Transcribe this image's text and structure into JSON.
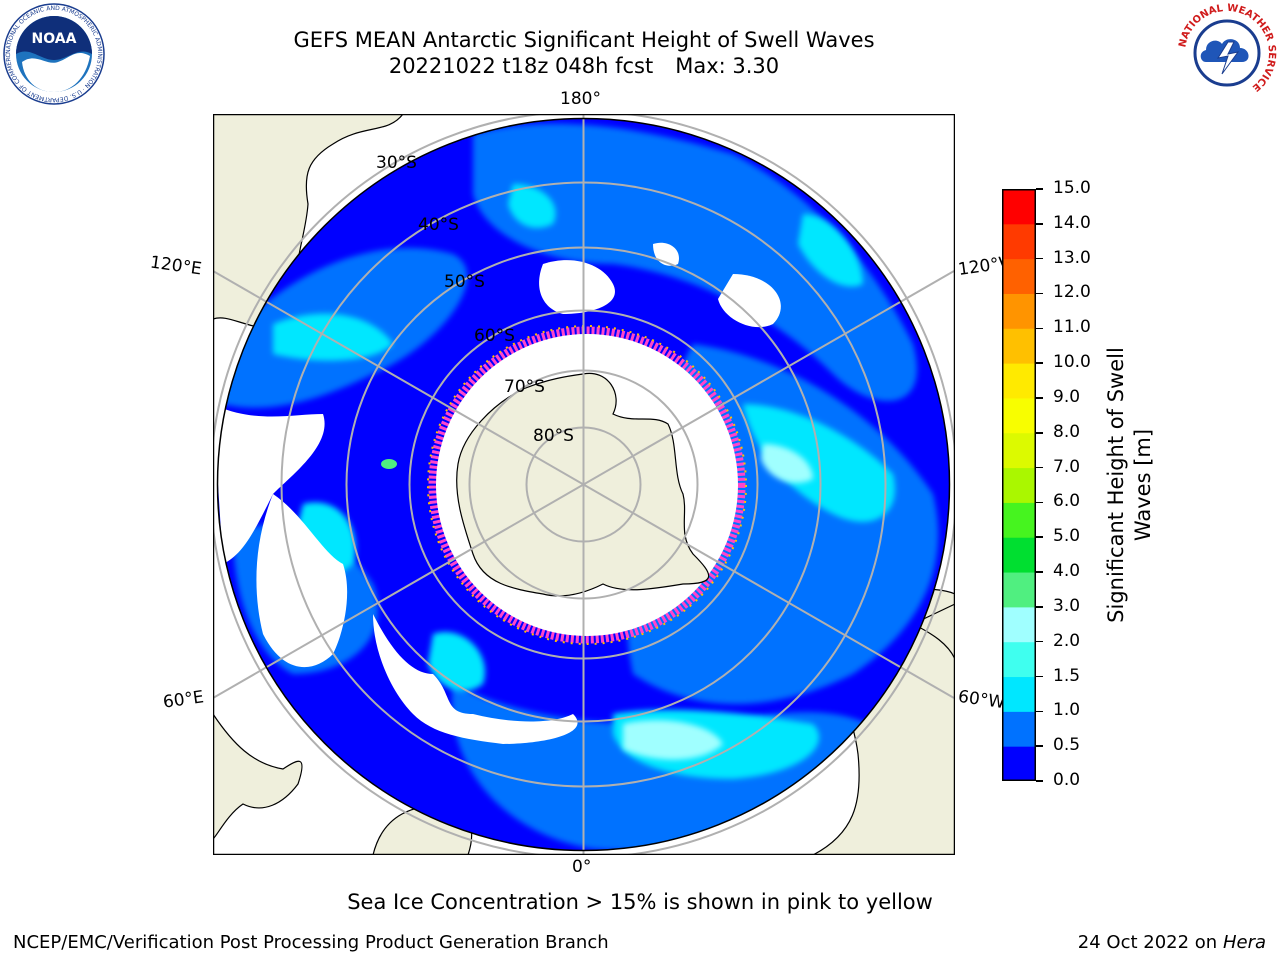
{
  "header": {
    "title_line1": "GEFS MEAN Antarctic Significant Height of Swell Waves",
    "title_line2_date": "20221022 t18z 048h fcst",
    "title_line2_max": "Max: 3.30"
  },
  "logos": {
    "noaa_text": "NOAA",
    "noaa_ring_text": "NATIONAL OCEANIC AND ATMOSPHERIC ADMINISTRATION · U.S. DEPARTMENT OF COMMERCE",
    "nws_ring_text": "NATIONAL WEATHER SERVICE"
  },
  "map": {
    "projection": "south-polar-stereographic",
    "lon_labels": {
      "top": "180°",
      "bottom": "0°",
      "upper_left": "120°E",
      "upper_right": "120°W",
      "lower_left": "60°E",
      "lower_right": "60°W"
    },
    "lat_labels": [
      "30°S",
      "40°S",
      "50°S",
      "60°S",
      "70°S",
      "80°S"
    ],
    "colors": {
      "land": "#efefdc",
      "grid": "#b0b0b0",
      "ice_no_data": "#ffffff",
      "ice_edge": "#ff44cc"
    }
  },
  "colorbar": {
    "label": "Significant Height of Swell Waves [m]",
    "ticks": [
      "0.0",
      "0.5",
      "1.0",
      "1.5",
      "2.0",
      "3.0",
      "4.0",
      "5.0",
      "6.0",
      "7.0",
      "8.0",
      "9.0",
      "10.0",
      "11.0",
      "12.0",
      "13.0",
      "14.0",
      "15.0"
    ],
    "colors": [
      "#0000ff",
      "#0072ff",
      "#00e7ff",
      "#3fffef",
      "#a0ffff",
      "#50ef80",
      "#00df30",
      "#46f41f",
      "#aaf700",
      "#dcfa00",
      "#f8fe00",
      "#ffea00",
      "#ffc000",
      "#ff9400",
      "#ff6100",
      "#ff3a00",
      "#ff0000"
    ]
  },
  "note": "Sea Ice Concentration > 15% is shown in pink to yellow",
  "footer": {
    "left": "NCEP/EMC/Verification Post Processing Product Generation Branch",
    "date": "24 Oct 2022 on",
    "machine": "Hera"
  }
}
